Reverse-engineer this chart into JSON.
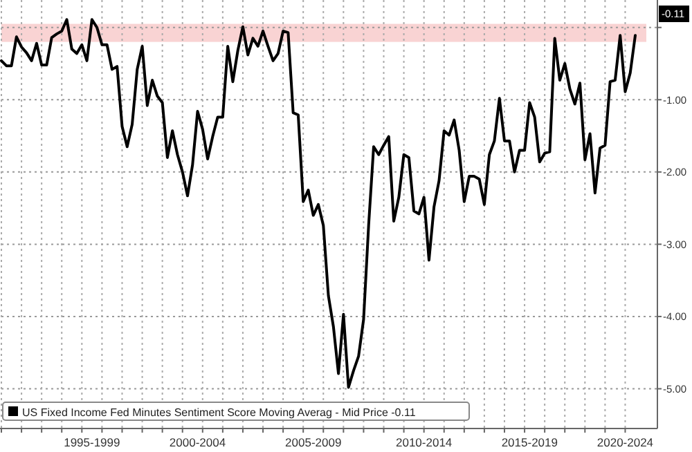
{
  "chart_data": {
    "type": "line",
    "categories": [
      null,
      null,
      null,
      null,
      null,
      null,
      null,
      null,
      null,
      null,
      null,
      null,
      null,
      null,
      null,
      null,
      null,
      null,
      "1995-1999",
      null,
      null,
      null,
      null,
      null,
      null,
      null,
      null,
      null,
      null,
      null,
      null,
      null,
      null,
      null,
      null,
      null,
      null,
      null,
      null,
      "2000-2004",
      null,
      null,
      null,
      null,
      null,
      null,
      null,
      null,
      null,
      null,
      null,
      null,
      null,
      null,
      null,
      null,
      null,
      null,
      null,
      null,
      null,
      null,
      "2005-2009",
      null,
      null,
      null,
      null,
      null,
      null,
      null,
      null,
      null,
      null,
      null,
      null,
      null,
      null,
      null,
      null,
      null,
      null,
      null,
      null,
      null,
      "2010-2014",
      null,
      null,
      null,
      null,
      null,
      null,
      null,
      null,
      null,
      null,
      null,
      null,
      null,
      null,
      null,
      null,
      null,
      null,
      null,
      null,
      "2015-2019",
      null,
      null,
      null,
      null,
      null,
      null,
      null,
      null,
      null,
      null,
      null,
      null,
      null,
      null,
      null,
      null,
      null,
      null,
      "2020-2024",
      null,
      null
    ],
    "series": [
      {
        "name": "US Fixed Income Fed Minutes Sentiment Score Moving Averag - Mid Price -0.11",
        "color": "#000000",
        "values": [
          -0.46,
          -0.53,
          -0.53,
          -0.13,
          -0.27,
          -0.35,
          -0.46,
          -0.22,
          -0.52,
          -0.52,
          -0.14,
          -0.09,
          -0.05,
          0.11,
          -0.3,
          -0.36,
          -0.24,
          -0.46,
          0.11,
          0.0,
          -0.24,
          -0.24,
          -0.58,
          -0.54,
          -1.37,
          -1.65,
          -1.34,
          -0.58,
          -0.26,
          -1.08,
          -0.73,
          -0.95,
          -1.04,
          -1.8,
          -1.43,
          -1.76,
          -2.0,
          -2.33,
          -1.9,
          -1.16,
          -1.41,
          -1.82,
          -1.51,
          -1.24,
          -1.24,
          -0.26,
          -0.75,
          -0.32,
          0.01,
          -0.38,
          -0.15,
          -0.26,
          -0.05,
          -0.26,
          -0.46,
          -0.36,
          -0.05,
          -0.07,
          -1.18,
          -1.21,
          -2.41,
          -2.25,
          -2.6,
          -2.45,
          -2.74,
          -3.71,
          -4.14,
          -4.79,
          -3.97,
          -4.98,
          -4.75,
          -4.55,
          -4.04,
          -2.74,
          -1.65,
          -1.76,
          -1.63,
          -1.51,
          -2.68,
          -2.35,
          -1.76,
          -1.8,
          -2.54,
          -2.58,
          -2.35,
          -3.22,
          -2.48,
          -2.12,
          -1.43,
          -1.49,
          -1.28,
          -1.7,
          -2.41,
          -2.06,
          -2.06,
          -2.1,
          -2.45,
          -1.76,
          -1.57,
          -0.98,
          -1.57,
          -1.57,
          -2.0,
          -1.7,
          -1.7,
          -1.04,
          -1.24,
          -1.86,
          -1.74,
          -1.72,
          -0.15,
          -0.73,
          -0.5,
          -0.85,
          -1.06,
          -0.77,
          -1.83,
          -1.47,
          -2.29,
          -1.67,
          -1.63,
          -0.75,
          -0.73,
          -0.11,
          -0.89,
          -0.63,
          -0.11
        ]
      }
    ],
    "ylim": [
      -5.55,
      0.38
    ],
    "yticks": [
      {
        "value": 0,
        "label": null
      },
      {
        "value": -1,
        "label": "-1.00"
      },
      {
        "value": -2,
        "label": "-2.00"
      },
      {
        "value": -3,
        "label": "-3.00"
      },
      {
        "value": -4,
        "label": "-4.00"
      },
      {
        "value": -5,
        "label": "-5.00"
      }
    ],
    "bands": [
      {
        "axis": "y",
        "from": -0.2,
        "to": 0.05,
        "color": "#f8c8c8"
      }
    ],
    "annotations": [
      "-0.11"
    ],
    "grid": true,
    "legend": "bottom left",
    "line_style": "solid",
    "marker": "none"
  }
}
